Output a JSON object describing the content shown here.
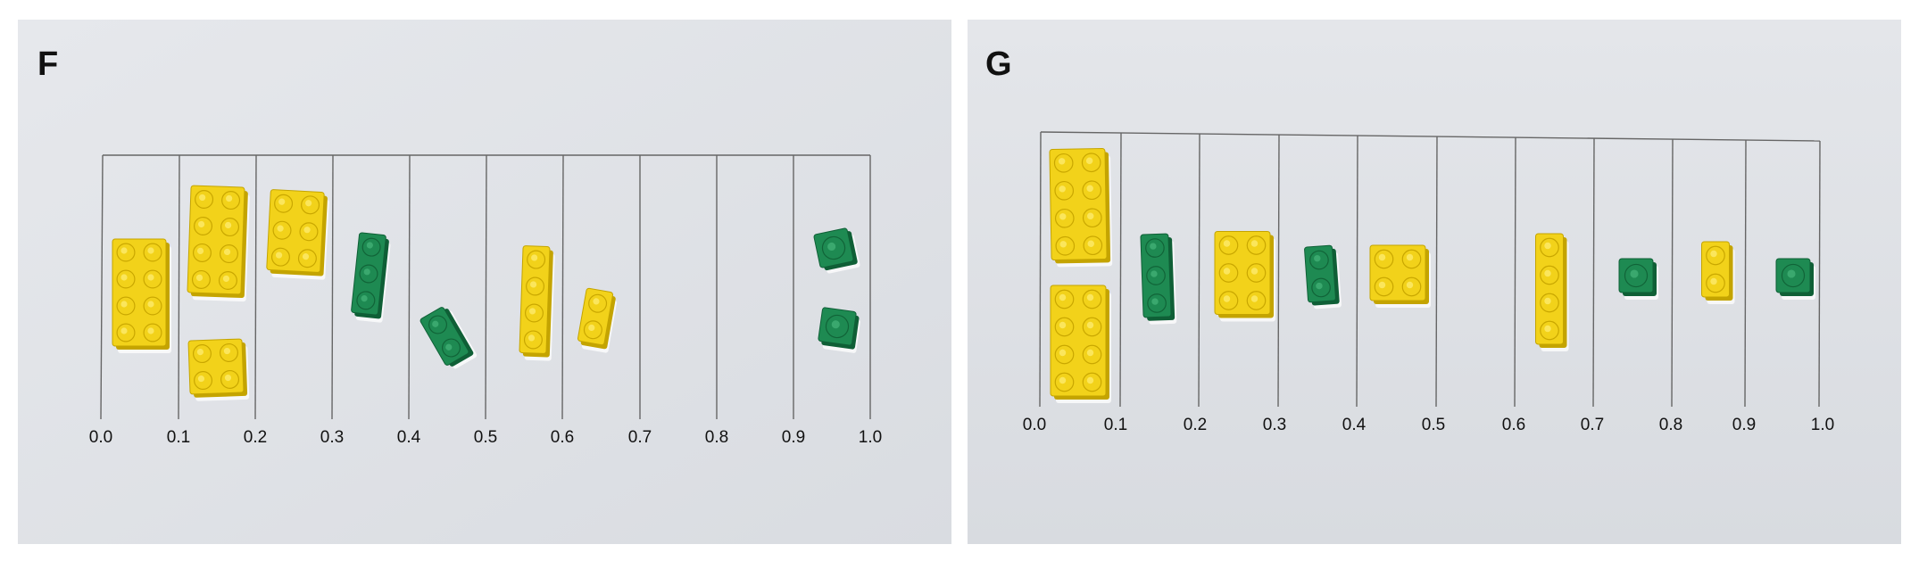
{
  "figure": {
    "panels": [
      {
        "label": "F",
        "ticks": [
          "0.0",
          "0.1",
          "0.2",
          "0.3",
          "0.4",
          "0.5",
          "0.6",
          "0.7",
          "0.8",
          "0.9",
          "1.0"
        ]
      },
      {
        "label": "G",
        "ticks": [
          "0.0",
          "0.1",
          "0.2",
          "0.3",
          "0.4",
          "0.5",
          "0.6",
          "0.7",
          "0.8",
          "0.9",
          "1.0"
        ]
      }
    ],
    "colors": {
      "yellow_brick": "#f2d21a",
      "green_brick": "#1e8a52",
      "paper_F": "#e4e6ea",
      "paper_G": "#e1e3e7",
      "grid_line": "#666666"
    }
  }
}
